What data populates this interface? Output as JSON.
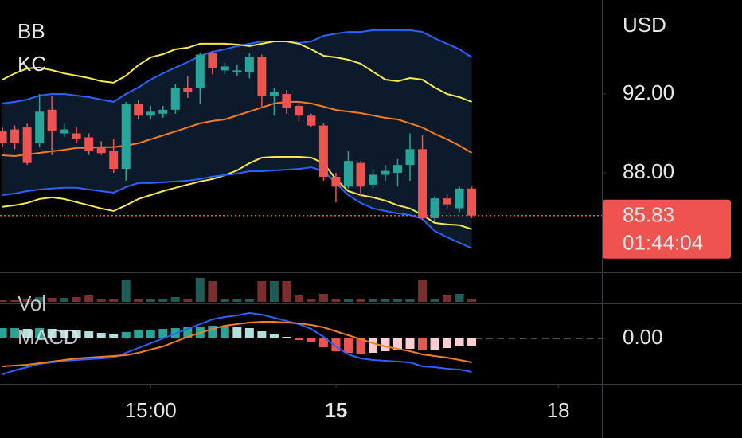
{
  "chart_data": [
    {
      "type": "candlestick",
      "indicators": [
        "BB",
        "KC"
      ],
      "currency": "USD",
      "x": [
        0,
        1,
        2,
        3,
        4,
        5,
        6,
        7,
        8,
        9,
        10,
        11,
        12,
        13,
        14,
        15,
        16,
        17,
        18,
        19,
        20,
        21,
        22,
        23,
        24,
        25,
        26,
        27,
        28,
        29,
        30,
        31,
        32,
        33,
        34,
        35,
        36,
        37,
        38
      ],
      "open": [
        90.1,
        90.2,
        90.3,
        89.5,
        91.2,
        90.0,
        90.0,
        89.8,
        89.3,
        89.1,
        88.2,
        91.5,
        90.9,
        91.0,
        91.2,
        92.3,
        92.3,
        94.1,
        93.2,
        93.1,
        93.1,
        93.9,
        91.9,
        92.0,
        91.4,
        90.9,
        90.4,
        87.8,
        87.3,
        88.5,
        87.4,
        87.9,
        88.0,
        88.4,
        89.2,
        85.7,
        86.7,
        86.2,
        87.2
      ],
      "close": [
        89.5,
        89.5,
        88.5,
        91.1,
        90.1,
        90.2,
        89.7,
        89.1,
        89.0,
        88.2,
        91.5,
        90.9,
        91.1,
        91.2,
        92.3,
        92.1,
        94.0,
        93.3,
        93.4,
        93.2,
        93.9,
        91.9,
        92.1,
        91.3,
        90.9,
        90.4,
        87.8,
        87.3,
        88.6,
        87.3,
        87.9,
        88.1,
        88.4,
        89.2,
        85.7,
        86.7,
        86.4,
        87.2,
        85.83
      ],
      "high": [
        90.3,
        90.4,
        90.5,
        92.0,
        91.9,
        90.5,
        90.3,
        90.0,
        89.6,
        89.7,
        91.6,
        91.7,
        91.4,
        91.4,
        92.5,
        92.9,
        94.1,
        94.2,
        93.6,
        93.5,
        94.1,
        94.0,
        92.3,
        92.2,
        91.6,
        91.0,
        90.5,
        88.0,
        89.1,
        88.6,
        88.2,
        88.4,
        88.7,
        90.0,
        89.9,
        86.8,
        86.9,
        87.3,
        87.3
      ],
      "low": [
        89.3,
        89.2,
        88.4,
        89.3,
        88.9,
        89.8,
        89.5,
        88.9,
        88.9,
        88.0,
        87.6,
        90.7,
        90.7,
        90.8,
        91.0,
        91.8,
        91.5,
        93.0,
        93.0,
        92.9,
        92.8,
        91.3,
        90.9,
        91.0,
        90.6,
        90.3,
        87.6,
        86.5,
        87.2,
        86.8,
        87.2,
        87.6,
        87.3,
        87.6,
        85.6,
        85.5,
        86.2,
        86.0,
        85.7
      ],
      "up_color": "#26a69a",
      "down_color": "#ef5350",
      "bands": [
        {
          "color": "#2962ff",
          "values": [
            91.52,
            91.6,
            91.72,
            91.92,
            92.0,
            92.0,
            91.92,
            91.84,
            91.72,
            91.6,
            92.0,
            92.33,
            92.73,
            93.05,
            93.34,
            93.62,
            93.94,
            94.14,
            94.27,
            94.43,
            94.55,
            94.67,
            94.67,
            94.67,
            94.59,
            94.67,
            94.95,
            95.07,
            95.15,
            95.15,
            95.24,
            95.24,
            95.24,
            95.24,
            95.15,
            94.83,
            94.55,
            94.27,
            93.86
          ]
        },
        {
          "color": "#f5e94a",
          "values": [
            92.73,
            93.05,
            93.3,
            93.34,
            93.21,
            93.05,
            92.93,
            92.81,
            92.65,
            92.57,
            92.93,
            93.46,
            93.86,
            94.02,
            94.27,
            94.35,
            94.55,
            94.55,
            94.55,
            94.51,
            94.43,
            94.55,
            94.67,
            94.67,
            94.55,
            94.27,
            93.94,
            93.86,
            93.74,
            93.54,
            93.13,
            92.73,
            92.65,
            92.81,
            92.73,
            92.33,
            92.0,
            91.84,
            91.6
          ]
        },
        {
          "color": "#f57c1f",
          "values": [
            88.89,
            88.85,
            88.93,
            89.01,
            89.09,
            89.17,
            89.26,
            89.26,
            89.3,
            89.3,
            89.38,
            89.5,
            89.7,
            89.9,
            90.1,
            90.3,
            90.51,
            90.63,
            90.71,
            90.91,
            91.11,
            91.32,
            91.52,
            91.6,
            91.6,
            91.52,
            91.36,
            91.19,
            91.11,
            91.03,
            90.91,
            90.79,
            90.71,
            90.51,
            90.3,
            89.98,
            89.7,
            89.38,
            89.01
          ]
        },
        {
          "color": "#f5e94a",
          "values": [
            86.27,
            86.35,
            86.47,
            86.67,
            86.75,
            86.67,
            86.51,
            86.35,
            86.19,
            86.06,
            86.35,
            86.67,
            86.87,
            87.07,
            87.24,
            87.4,
            87.56,
            87.68,
            87.88,
            88.12,
            88.49,
            88.77,
            88.81,
            88.81,
            88.81,
            88.77,
            88.49,
            87.68,
            87.07,
            86.87,
            86.75,
            86.59,
            86.35,
            86.19,
            85.86,
            85.46,
            85.38,
            85.34,
            85.14
          ]
        },
        {
          "color": "#2962ff",
          "values": [
            86.87,
            86.95,
            87.07,
            87.15,
            87.2,
            87.24,
            87.24,
            87.15,
            87.07,
            86.99,
            87.28,
            87.48,
            87.48,
            87.52,
            87.56,
            87.6,
            87.68,
            87.81,
            87.88,
            87.96,
            88.08,
            88.08,
            88.12,
            88.16,
            88.2,
            88.28,
            88.08,
            87.48,
            86.87,
            86.47,
            86.19,
            86.06,
            85.94,
            85.86,
            85.66,
            85.05,
            84.73,
            84.45,
            84.17
          ]
        }
      ],
      "band_fill": "#0c1a2b",
      "xlim": [
        -0.2,
        48.6
      ],
      "xticks": [
        {
          "value": 12,
          "label": "15:00"
        },
        {
          "value": 27,
          "label": "15"
        },
        {
          "value": 45,
          "label": "18"
        }
      ],
      "ylim": [
        83.03,
        96.77
      ],
      "yticks": [
        {
          "value": 92,
          "label": "92.00"
        },
        {
          "value": 88,
          "label": "88.00"
        }
      ],
      "last_price": 85.83,
      "countdown": "01:44:04"
    },
    {
      "type": "bar",
      "title": "Vol",
      "values": [
        2,
        2,
        3,
        6,
        5,
        5,
        6,
        8,
        3,
        3,
        28,
        4,
        4,
        4,
        6,
        4,
        30,
        26,
        4,
        4,
        4,
        26,
        26,
        26,
        8,
        4,
        10,
        4,
        4,
        4,
        3,
        4,
        3,
        3,
        28,
        4,
        8,
        10,
        3
      ],
      "up_color": "#1f5c55",
      "down_color": "#7a2e2e",
      "ylim": [
        0,
        35
      ]
    },
    {
      "type": "macd",
      "title": "MACD",
      "histogram": [
        0.13,
        0.13,
        0.12,
        0.13,
        0.12,
        0.11,
        0.1,
        0.09,
        0.07,
        0.06,
        0.08,
        0.1,
        0.11,
        0.12,
        0.13,
        0.14,
        0.15,
        0.16,
        0.16,
        0.15,
        0.13,
        0.09,
        0.05,
        0.02,
        -0.02,
        -0.05,
        -0.11,
        -0.16,
        -0.18,
        -0.19,
        -0.18,
        -0.16,
        -0.15,
        -0.13,
        -0.15,
        -0.14,
        -0.12,
        -0.1,
        -0.09
      ],
      "hist_colors": [
        "#26a69a",
        "#b2dfdb",
        "#ef5350",
        "#ffcdd2"
      ],
      "macd": {
        "color": "#2962ff",
        "values": [
          -0.45,
          -0.4,
          -0.36,
          -0.32,
          -0.3,
          -0.28,
          -0.27,
          -0.26,
          -0.25,
          -0.24,
          -0.18,
          -0.12,
          -0.06,
          0.0,
          0.06,
          0.12,
          0.18,
          0.24,
          0.27,
          0.29,
          0.32,
          0.3,
          0.26,
          0.22,
          0.18,
          0.12,
          0.02,
          -0.1,
          -0.2,
          -0.25,
          -0.27,
          -0.28,
          -0.29,
          -0.3,
          -0.35,
          -0.36,
          -0.38,
          -0.39,
          -0.42
        ]
      },
      "signal": {
        "color": "#f57c1f",
        "values": [
          -0.35,
          -0.34,
          -0.33,
          -0.31,
          -0.29,
          -0.27,
          -0.25,
          -0.24,
          -0.23,
          -0.22,
          -0.21,
          -0.18,
          -0.14,
          -0.1,
          -0.04,
          0.02,
          0.07,
          0.12,
          0.16,
          0.18,
          0.2,
          0.21,
          0.21,
          0.2,
          0.19,
          0.17,
          0.14,
          0.09,
          0.04,
          -0.01,
          -0.06,
          -0.1,
          -0.13,
          -0.16,
          -0.2,
          -0.22,
          -0.24,
          -0.27,
          -0.3
        ]
      },
      "ylim": [
        -0.57,
        0.42
      ],
      "yticks": [
        {
          "value": 0,
          "label": "0.00"
        }
      ]
    }
  ]
}
